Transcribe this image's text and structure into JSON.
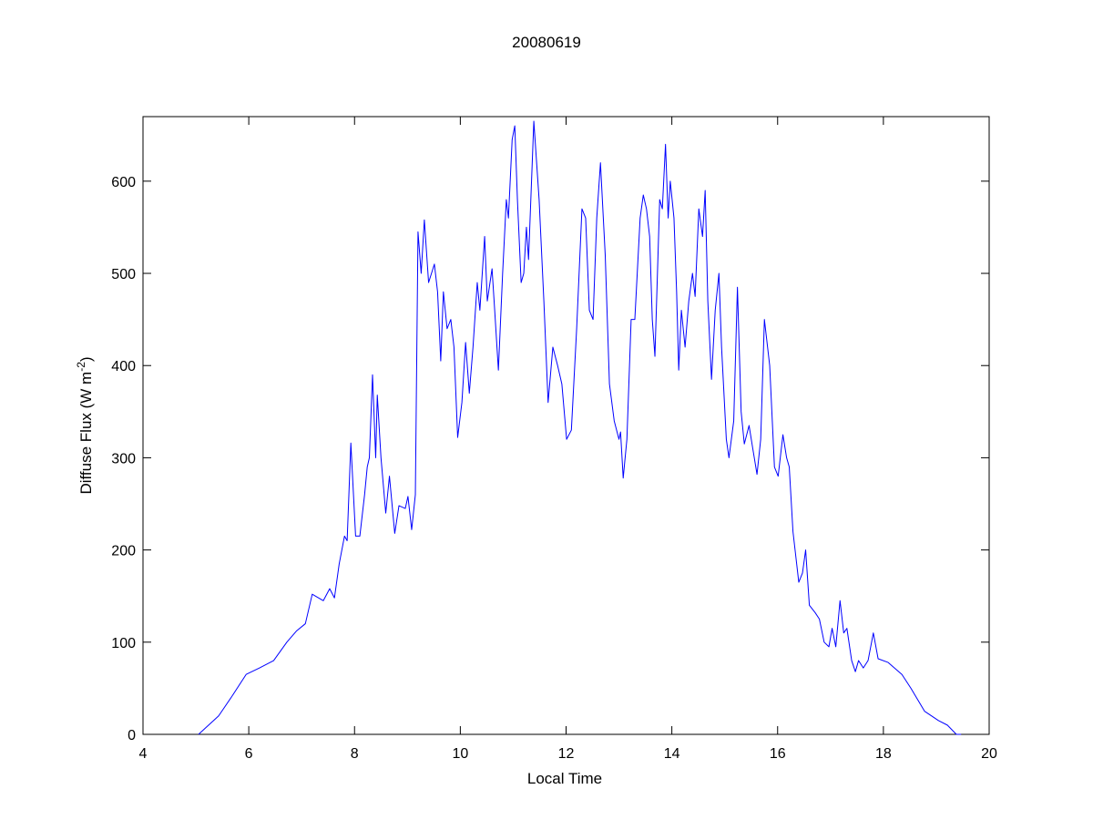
{
  "chart_data": {
    "type": "line",
    "title": "20080619",
    "x_label": "Local Time",
    "y_label": {
      "text": "Diffuse Flux (W m",
      "superscript": "-2",
      "suffix": ")"
    },
    "color": "#0000ff",
    "xlim": [
      4,
      20
    ],
    "xticks": [
      4,
      6,
      8,
      10,
      12,
      14,
      16,
      18,
      20
    ],
    "ylim": [
      0,
      670
    ],
    "yticks": [
      0,
      100,
      200,
      300,
      400,
      500,
      600
    ],
    "grid": false,
    "x": [
      5.05,
      5.43,
      5.69,
      5.95,
      6.2,
      6.47,
      6.72,
      6.9,
      7.07,
      7.2,
      7.41,
      7.53,
      7.62,
      7.71,
      7.81,
      7.86,
      7.93,
      8.02,
      8.1,
      8.19,
      8.24,
      8.28,
      8.34,
      8.4,
      8.43,
      8.5,
      8.59,
      8.66,
      8.76,
      8.84,
      8.96,
      9.01,
      9.08,
      9.15,
      9.2,
      9.26,
      9.32,
      9.4,
      9.51,
      9.57,
      9.63,
      9.68,
      9.75,
      9.82,
      9.88,
      9.95,
      10.03,
      10.1,
      10.17,
      10.24,
      10.32,
      10.37,
      10.46,
      10.51,
      10.6,
      10.65,
      10.72,
      10.8,
      10.87,
      10.91,
      10.98,
      11.03,
      11.08,
      11.15,
      11.2,
      11.25,
      11.29,
      11.39,
      11.49,
      11.58,
      11.66,
      11.75,
      11.84,
      11.92,
      12.01,
      12.1,
      12.2,
      12.3,
      12.37,
      12.44,
      12.51,
      12.58,
      12.65,
      12.74,
      12.82,
      12.91,
      13.0,
      13.03,
      13.08,
      13.15,
      13.23,
      13.3,
      13.4,
      13.46,
      13.52,
      13.58,
      13.63,
      13.68,
      13.77,
      13.82,
      13.88,
      13.93,
      13.97,
      14.04,
      14.09,
      14.13,
      14.18,
      14.25,
      14.32,
      14.39,
      14.44,
      14.51,
      14.58,
      14.63,
      14.68,
      14.75,
      14.82,
      14.89,
      14.94,
      15.03,
      15.08,
      15.17,
      15.24,
      15.31,
      15.37,
      15.46,
      15.53,
      15.61,
      15.68,
      15.75,
      15.85,
      15.94,
      16.01,
      16.1,
      16.17,
      16.22,
      16.29,
      16.4,
      16.47,
      16.53,
      16.6,
      16.71,
      16.79,
      16.88,
      16.97,
      17.03,
      17.1,
      17.18,
      17.25,
      17.31,
      17.4,
      17.47,
      17.53,
      17.62,
      17.71,
      17.81,
      17.9,
      18.09,
      18.35,
      18.52,
      18.78,
      19.04,
      19.21,
      19.38,
      19.47
    ],
    "values": [
      0,
      20,
      42,
      65,
      72,
      80,
      100,
      112,
      120,
      152,
      145,
      158,
      148,
      185,
      215,
      210,
      316,
      215,
      215,
      260,
      290,
      300,
      390,
      300,
      368,
      300,
      240,
      280,
      218,
      248,
      245,
      258,
      222,
      260,
      545,
      500,
      558,
      490,
      510,
      480,
      405,
      480,
      440,
      450,
      420,
      322,
      360,
      425,
      370,
      420,
      490,
      460,
      540,
      470,
      505,
      460,
      395,
      500,
      580,
      560,
      645,
      660,
      580,
      490,
      500,
      550,
      515,
      665,
      580,
      470,
      360,
      420,
      400,
      380,
      320,
      330,
      440,
      570,
      560,
      460,
      450,
      560,
      620,
      520,
      380,
      340,
      320,
      328,
      278,
      320,
      450,
      450,
      560,
      585,
      570,
      540,
      450,
      410,
      580,
      570,
      640,
      560,
      600,
      560,
      480,
      395,
      460,
      420,
      470,
      500,
      475,
      570,
      540,
      590,
      470,
      385,
      460,
      500,
      420,
      320,
      300,
      340,
      485,
      350,
      315,
      335,
      310,
      282,
      320,
      450,
      400,
      290,
      280,
      325,
      300,
      290,
      220,
      165,
      175,
      200,
      140,
      132,
      125,
      100,
      95,
      115,
      95,
      145,
      110,
      115,
      80,
      68,
      80,
      72,
      80,
      110,
      82,
      78,
      65,
      50,
      25,
      15,
      10,
      0,
      0
    ]
  }
}
